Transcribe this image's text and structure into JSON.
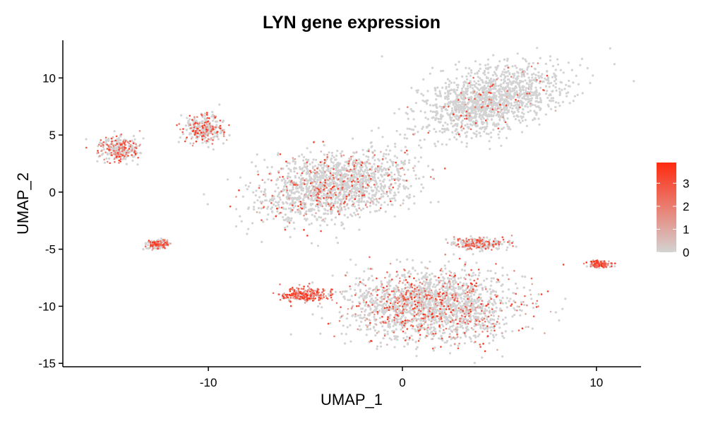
{
  "chart_data": {
    "type": "scatter",
    "title": "LYN gene expression",
    "xlabel": "UMAP_1",
    "ylabel": "UMAP_2",
    "xlim": [
      -17.5,
      12.3
    ],
    "ylim": [
      -15.3,
      13.3
    ],
    "x_ticks": [
      -10,
      0,
      10
    ],
    "x_tick_labels": [
      "-10",
      "0",
      "10"
    ],
    "y_ticks": [
      -15,
      -10,
      -5,
      0,
      5,
      10
    ],
    "y_tick_labels": [
      "-15",
      "-10",
      "-5",
      "0",
      "5",
      "10"
    ],
    "grid": false,
    "legend": {
      "placement": "right",
      "type": "colorbar",
      "min": 0,
      "max": 3.9,
      "ticks": [
        0,
        1,
        2,
        3
      ],
      "tick_labels": [
        "0",
        "1",
        "2",
        "3"
      ],
      "color_low": "#d3d3d3",
      "color_high": "#ff2a10"
    },
    "clusters": [
      {
        "region": "upper-right large cluster",
        "center": [
          4.5,
          8.0
        ],
        "spread": [
          3.6,
          2.2
        ],
        "rotation_deg": 33,
        "mean_expression": 0.12
      },
      {
        "region": "central-left cluster",
        "center": [
          -3.5,
          0.5
        ],
        "spread": [
          3.6,
          2.4
        ],
        "rotation_deg": 22,
        "mean_expression": 0.35
      },
      {
        "region": "lower large cluster",
        "center": [
          1.5,
          -10.0
        ],
        "spread": [
          4.0,
          2.7
        ],
        "rotation_deg": 0,
        "mean_expression": 0.6
      },
      {
        "region": "lower-left dense tip",
        "center": [
          -5.0,
          -9.0
        ],
        "spread": [
          1.2,
          0.6
        ],
        "rotation_deg": 0,
        "mean_expression": 2.8
      },
      {
        "region": "far-left cluster",
        "center": [
          -14.5,
          3.8
        ],
        "spread": [
          1.0,
          1.0
        ],
        "rotation_deg": 0,
        "mean_expression": 1.0
      },
      {
        "region": "upper-left cluster",
        "center": [
          -10.2,
          5.6
        ],
        "spread": [
          0.9,
          1.1
        ],
        "rotation_deg": 0,
        "mean_expression": 0.9
      },
      {
        "region": "small left cluster",
        "center": [
          -12.6,
          -4.6
        ],
        "spread": [
          0.5,
          0.3
        ],
        "rotation_deg": 0,
        "mean_expression": 1.0
      },
      {
        "region": "far-right small cluster",
        "center": [
          10.2,
          -6.3
        ],
        "spread": [
          0.5,
          0.3
        ],
        "rotation_deg": 0,
        "mean_expression": 1.4
      },
      {
        "region": "lower-right arm",
        "center": [
          4.0,
          -4.5
        ],
        "spread": [
          1.4,
          0.5
        ],
        "rotation_deg": 0,
        "mean_expression": 1.0
      }
    ]
  }
}
